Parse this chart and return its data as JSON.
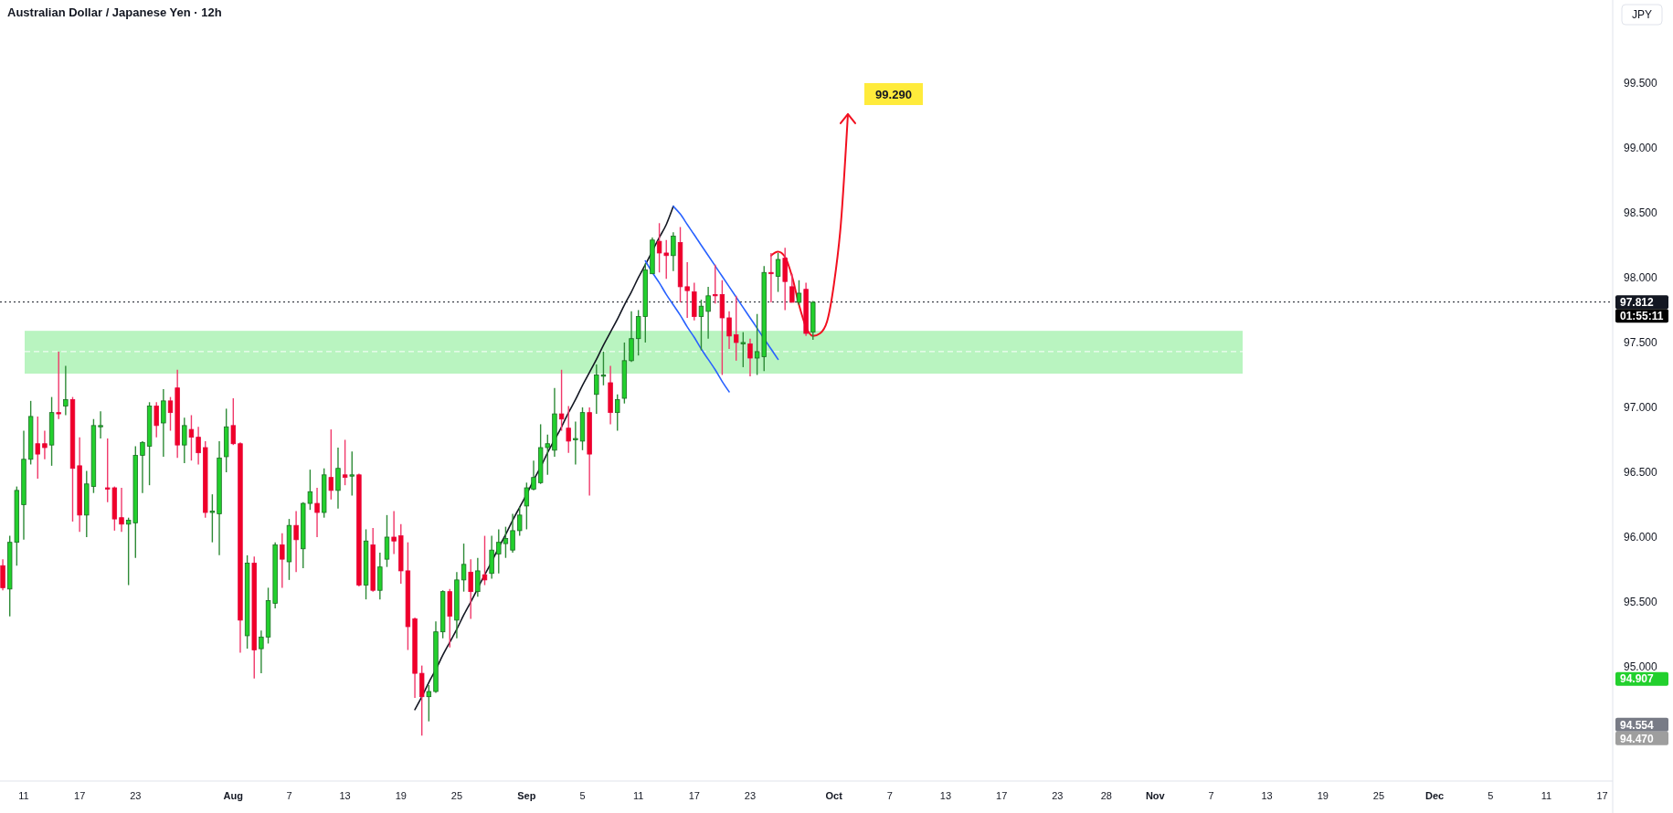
{
  "chart_data": {
    "type": "candlestick",
    "title": "Australian Dollar / Japanese Yen · 12h",
    "categories": [
      null,
      null,
      null,
      "11",
      null,
      null,
      null,
      null,
      null,
      null,
      null,
      "17",
      null,
      null,
      null,
      null,
      null,
      null,
      null,
      "23",
      null,
      null,
      null,
      null,
      null,
      null,
      null,
      null,
      null,
      null,
      null,
      null,
      null,
      "Aug",
      null,
      null,
      null,
      null,
      null,
      null,
      null,
      "7",
      null,
      null,
      null,
      null,
      null,
      null,
      null,
      "13",
      null,
      null,
      null,
      null,
      null,
      null,
      null,
      "19",
      null,
      null,
      null,
      null,
      null,
      null,
      null,
      "25",
      null,
      null,
      null,
      null,
      null,
      null,
      null,
      null,
      null,
      "Sep",
      null,
      null,
      null,
      null,
      null,
      null,
      null,
      "5",
      null,
      null,
      null,
      null,
      null,
      null,
      null,
      "11",
      null,
      null,
      null,
      null,
      null,
      null,
      null,
      "17",
      null,
      null,
      null,
      null,
      null,
      null,
      null,
      "23",
      null,
      null,
      null,
      null,
      null,
      null,
      null,
      null,
      null,
      null,
      null,
      "Oct",
      null,
      null,
      null,
      null,
      null,
      null,
      null,
      "7",
      null,
      null,
      null,
      null,
      null,
      null,
      null,
      "13",
      null,
      null,
      null,
      null,
      null,
      null,
      null,
      "17",
      null,
      null,
      null,
      null,
      null,
      null,
      null,
      "23",
      null,
      null,
      null,
      null,
      null,
      null,
      "28",
      null,
      null,
      null,
      null,
      null,
      null,
      "Nov",
      null,
      null,
      null,
      null,
      null,
      null,
      null,
      "7",
      null,
      null,
      null,
      null,
      null,
      null,
      null,
      "13",
      null,
      null,
      null,
      null,
      null,
      null,
      null,
      "19",
      null,
      null,
      null,
      null,
      null,
      null,
      null,
      "25",
      null,
      null,
      null,
      null,
      null,
      null,
      null,
      "Dec",
      null,
      null,
      null,
      null,
      null,
      null,
      null,
      "5",
      null,
      null,
      null,
      null,
      null,
      null,
      null,
      "11",
      null,
      null,
      null,
      null,
      null,
      null,
      null,
      "17"
    ],
    "ohlc": [
      [
        95.78,
        95.83,
        95.59,
        95.61
      ],
      [
        95.6,
        96.01,
        95.39,
        95.96
      ],
      [
        95.96,
        96.39,
        95.78,
        96.36
      ],
      [
        96.25,
        96.82,
        95.98,
        96.6
      ],
      [
        96.6,
        97.05,
        96.56,
        96.93
      ],
      [
        96.72,
        96.93,
        96.45,
        96.64
      ],
      [
        96.72,
        96.82,
        96.6,
        96.69
      ],
      [
        96.71,
        97.08,
        96.55,
        96.96
      ],
      [
        96.96,
        97.43,
        96.91,
        96.95
      ],
      [
        97.01,
        97.32,
        96.94,
        97.06
      ],
      [
        97.06,
        97.08,
        96.12,
        96.53
      ],
      [
        96.55,
        96.77,
        96.04,
        96.17
      ],
      [
        96.17,
        96.51,
        96.0,
        96.41
      ],
      [
        96.39,
        96.91,
        96.34,
        96.86
      ],
      [
        96.85,
        96.97,
        96.76,
        96.86
      ],
      [
        96.38,
        96.76,
        96.27,
        96.37
      ],
      [
        96.38,
        96.39,
        96.05,
        96.14
      ],
      [
        96.15,
        96.38,
        96.04,
        96.1
      ],
      [
        96.1,
        96.15,
        95.63,
        96.13
      ],
      [
        96.11,
        96.7,
        95.84,
        96.63
      ],
      [
        96.63,
        96.74,
        96.34,
        96.73
      ],
      [
        96.7,
        97.04,
        96.4,
        97.01
      ],
      [
        97.01,
        97.04,
        96.77,
        96.86
      ],
      [
        96.88,
        97.14,
        96.62,
        97.05
      ],
      [
        97.05,
        97.08,
        96.82,
        96.96
      ],
      [
        97.15,
        97.29,
        96.61,
        96.71
      ],
      [
        96.71,
        96.92,
        96.57,
        96.86
      ],
      [
        96.83,
        96.94,
        96.59,
        96.77
      ],
      [
        96.77,
        96.85,
        96.56,
        96.65
      ],
      [
        96.69,
        96.74,
        96.15,
        96.19
      ],
      [
        96.19,
        96.33,
        95.96,
        96.2
      ],
      [
        96.18,
        96.74,
        95.86,
        96.61
      ],
      [
        96.62,
        96.99,
        96.5,
        96.85
      ],
      [
        96.86,
        97.07,
        96.71,
        96.72
      ],
      [
        96.72,
        96.73,
        95.11,
        95.36
      ],
      [
        95.24,
        95.86,
        95.14,
        95.8
      ],
      [
        95.8,
        95.85,
        94.91,
        95.13
      ],
      [
        95.14,
        95.28,
        94.95,
        95.23
      ],
      [
        95.23,
        95.61,
        95.18,
        95.51
      ],
      [
        95.49,
        95.96,
        95.45,
        95.94
      ],
      [
        95.94,
        96.03,
        95.61,
        95.83
      ],
      [
        95.81,
        96.14,
        95.67,
        96.09
      ],
      [
        96.09,
        96.2,
        95.73,
        95.98
      ],
      [
        95.91,
        96.27,
        95.76,
        96.26
      ],
      [
        96.26,
        96.52,
        96.21,
        96.35
      ],
      [
        96.26,
        96.38,
        96.0,
        96.19
      ],
      [
        96.19,
        96.53,
        96.15,
        96.48
      ],
      [
        96.46,
        96.83,
        96.29,
        96.36
      ],
      [
        96.36,
        96.69,
        96.22,
        96.53
      ],
      [
        96.48,
        96.75,
        96.4,
        96.46
      ],
      [
        96.47,
        96.66,
        96.32,
        96.48
      ],
      [
        96.48,
        96.49,
        95.62,
        95.63
      ],
      [
        95.63,
        96.06,
        95.52,
        95.97
      ],
      [
        95.94,
        96.07,
        95.58,
        95.59
      ],
      [
        95.59,
        95.88,
        95.52,
        95.77
      ],
      [
        95.83,
        96.17,
        95.77,
        96.0
      ],
      [
        96.0,
        96.2,
        95.87,
        95.97
      ],
      [
        96.01,
        96.1,
        95.64,
        95.74
      ],
      [
        95.74,
        95.96,
        95.13,
        95.31
      ],
      [
        95.37,
        95.38,
        94.76,
        94.95
      ],
      [
        94.95,
        95.01,
        94.47,
        94.77
      ],
      [
        94.77,
        94.86,
        94.58,
        94.81
      ],
      [
        94.81,
        95.35,
        94.8,
        95.27
      ],
      [
        95.27,
        95.59,
        95.22,
        95.58
      ],
      [
        95.58,
        95.6,
        95.15,
        95.39
      ],
      [
        95.36,
        95.73,
        95.22,
        95.67
      ],
      [
        95.67,
        95.95,
        95.58,
        95.79
      ],
      [
        95.73,
        95.83,
        95.37,
        95.58
      ],
      [
        95.58,
        95.84,
        95.54,
        95.74
      ],
      [
        95.71,
        96.01,
        95.63,
        95.67
      ],
      [
        95.72,
        96.01,
        95.68,
        95.9
      ],
      [
        95.87,
        96.06,
        95.72,
        95.96
      ],
      [
        95.95,
        96.08,
        95.84,
        95.99
      ],
      [
        95.9,
        96.18,
        95.88,
        96.05
      ],
      [
        96.05,
        96.23,
        96.01,
        96.17
      ],
      [
        96.24,
        96.42,
        96.06,
        96.38
      ],
      [
        96.37,
        96.59,
        96.36,
        96.46
      ],
      [
        96.42,
        96.87,
        96.41,
        96.69
      ],
      [
        96.69,
        96.79,
        96.48,
        96.72
      ],
      [
        96.67,
        97.15,
        96.62,
        96.95
      ],
      [
        96.95,
        97.29,
        96.82,
        96.91
      ],
      [
        96.84,
        97.01,
        96.65,
        96.74
      ],
      [
        96.75,
        96.89,
        96.56,
        96.76
      ],
      [
        96.74,
        97.0,
        96.67,
        96.96
      ],
      [
        96.96,
        97.0,
        96.32,
        96.64
      ],
      [
        97.1,
        97.33,
        96.95,
        97.25
      ],
      [
        97.24,
        97.43,
        97.17,
        97.25
      ],
      [
        97.19,
        97.32,
        96.87,
        96.96
      ],
      [
        96.96,
        97.1,
        96.82,
        97.06
      ],
      [
        97.07,
        97.5,
        97.03,
        97.36
      ],
      [
        97.36,
        97.74,
        97.35,
        97.53
      ],
      [
        97.53,
        97.75,
        97.4,
        97.7
      ],
      [
        97.7,
        98.11,
        97.5,
        98.06
      ],
      [
        98.03,
        98.31,
        98.03,
        98.29
      ],
      [
        98.28,
        98.42,
        98.04,
        98.19
      ],
      [
        98.19,
        98.29,
        97.99,
        98.17
      ],
      [
        98.17,
        98.35,
        98.05,
        98.32
      ],
      [
        98.27,
        98.39,
        97.81,
        97.93
      ],
      [
        97.93,
        98.12,
        97.69,
        97.9
      ],
      [
        97.89,
        97.96,
        97.67,
        97.7
      ],
      [
        97.7,
        97.83,
        97.44,
        97.78
      ],
      [
        97.74,
        97.93,
        97.53,
        97.86
      ],
      [
        97.87,
        98.1,
        97.8,
        97.86
      ],
      [
        97.87,
        97.98,
        97.25,
        97.69
      ],
      [
        97.69,
        97.74,
        97.45,
        97.55
      ],
      [
        97.56,
        97.86,
        97.36,
        97.5
      ],
      [
        97.49,
        97.58,
        97.31,
        97.5
      ],
      [
        97.49,
        97.53,
        97.24,
        97.38
      ],
      [
        97.38,
        97.72,
        97.25,
        97.43
      ],
      [
        97.39,
        98.09,
        97.28,
        98.04
      ],
      [
        98.04,
        98.19,
        97.81,
        98.03
      ],
      [
        98.01,
        98.19,
        97.89,
        98.14
      ],
      [
        98.15,
        98.23,
        97.75,
        97.97
      ],
      [
        97.93,
        98.03,
        97.81,
        97.81
      ],
      [
        97.81,
        97.98,
        97.79,
        97.88
      ],
      [
        97.91,
        97.96,
        97.55,
        97.57
      ],
      [
        97.58,
        97.82,
        97.52,
        97.81
      ],
      null,
      null,
      null,
      null,
      null,
      null,
      null,
      null,
      null,
      null,
      null,
      null,
      null,
      null,
      null,
      null,
      null,
      null,
      null,
      null,
      null,
      null,
      null,
      null,
      null,
      null,
      null,
      null,
      null,
      null,
      null,
      null,
      null,
      null,
      null,
      null,
      null,
      null,
      null,
      null,
      null,
      null,
      null,
      null,
      null,
      null,
      null,
      null,
      null,
      null,
      null,
      null,
      null,
      null,
      null,
      null,
      null,
      null,
      null,
      null,
      null,
      null,
      null,
      null,
      null,
      null,
      null,
      null,
      null,
      null,
      null,
      null,
      null,
      null,
      null,
      null,
      null,
      null,
      null,
      null,
      null,
      null,
      null,
      null,
      null,
      null,
      null,
      null,
      null,
      null,
      null,
      null,
      null,
      null,
      null,
      null,
      null,
      null,
      null,
      null,
      null,
      null,
      null,
      null,
      null,
      null,
      null,
      null,
      null,
      null,
      null,
      null,
      null
    ],
    "ylim": [
      94.12,
      100.14
    ],
    "yticks": [
      {
        "value": 95,
        "label": "95.000"
      },
      {
        "value": 95.5,
        "label": "95.500"
      },
      {
        "value": 96,
        "label": "96.000"
      },
      {
        "value": 96.5,
        "label": "96.500"
      },
      {
        "value": 97,
        "label": "97.000"
      },
      {
        "value": 97.5,
        "label": "97.500"
      },
      {
        "value": 98,
        "label": "98.000"
      },
      {
        "value": 98.5,
        "label": "98.500"
      },
      {
        "value": 99,
        "label": "99.000"
      },
      {
        "value": 99.5,
        "label": "99.500"
      }
    ],
    "series": [
      {
        "type": "line",
        "color": "#131722",
        "values": [
          null,
          null,
          null,
          null,
          null,
          null,
          null,
          null,
          null,
          null,
          null,
          null,
          null,
          null,
          null,
          null,
          null,
          null,
          null,
          null,
          null,
          null,
          null,
          null,
          null,
          null,
          null,
          null,
          null,
          null,
          null,
          null,
          null,
          null,
          null,
          null,
          null,
          null,
          null,
          null,
          null,
          null,
          null,
          null,
          null,
          null,
          null,
          null,
          null,
          null,
          null,
          null,
          null,
          null,
          null,
          null,
          null,
          null,
          null,
          94.67,
          94.77,
          94.88,
          94.98,
          95.09,
          95.19,
          95.29,
          95.4,
          95.5,
          null,
          95.71,
          95.81,
          95.92,
          96.02,
          96.13,
          96.23,
          96.33,
          96.44,
          96.54,
          96.65,
          null,
          96.85,
          96.96,
          97.06,
          97.17,
          97.27,
          97.37,
          97.48,
          97.58,
          97.68,
          97.79,
          97.89,
          98.0,
          98.1,
          null,
          98.31,
          98.41,
          98.55,
          null,
          null,
          null,
          null,
          null,
          null,
          null,
          null,
          null,
          null,
          null,
          null,
          null,
          null,
          null,
          null,
          null,
          null,
          null,
          null,
          null,
          null,
          null,
          null,
          null,
          null,
          null,
          null,
          null,
          null,
          null,
          null,
          null,
          null,
          null,
          null,
          null,
          null,
          null,
          null,
          null,
          null,
          null,
          null,
          null,
          null,
          null,
          null,
          null,
          null,
          null,
          null,
          null,
          null,
          null,
          null,
          null,
          null,
          null,
          null,
          null,
          null,
          null,
          null,
          null,
          null,
          null,
          null,
          null,
          null,
          null,
          null,
          null,
          null,
          null,
          null,
          null,
          null,
          null,
          null,
          null,
          null,
          null,
          null,
          null,
          null,
          null,
          null,
          null,
          null,
          null,
          null,
          null,
          null,
          null,
          null,
          null,
          null,
          null,
          null,
          null,
          null,
          null,
          null,
          null,
          null,
          null,
          null,
          null,
          null,
          null,
          null,
          null,
          null,
          null,
          null,
          null,
          null,
          null,
          null,
          null,
          null,
          null,
          null,
          null,
          null,
          null,
          null,
          null,
          null,
          null,
          null,
          null
        ]
      },
      {
        "type": "line",
        "color": "#2962ff",
        "values": [
          null,
          null,
          null,
          null,
          null,
          null,
          null,
          null,
          null,
          null,
          null,
          null,
          null,
          null,
          null,
          null,
          null,
          null,
          null,
          null,
          null,
          null,
          null,
          null,
          null,
          null,
          null,
          null,
          null,
          null,
          null,
          null,
          null,
          null,
          null,
          null,
          null,
          null,
          null,
          null,
          null,
          null,
          null,
          null,
          null,
          null,
          null,
          null,
          null,
          null,
          null,
          null,
          null,
          null,
          null,
          null,
          null,
          null,
          null,
          null,
          null,
          null,
          null,
          null,
          null,
          null,
          null,
          null,
          null,
          null,
          null,
          null,
          null,
          null,
          null,
          null,
          null,
          null,
          null,
          null,
          null,
          null,
          null,
          null,
          null,
          null,
          null,
          null,
          null,
          null,
          null,
          null,
          null,
          null,
          null,
          null,
          98.55,
          98.49,
          98.41,
          98.33,
          98.25,
          98.17,
          98.09,
          98.01,
          97.93,
          97.85,
          97.77,
          97.69,
          97.61,
          97.53,
          97.45,
          97.37,
          null,
          null,
          null,
          null,
          null,
          null,
          null,
          null,
          null,
          null,
          null,
          null,
          null,
          null,
          null,
          null,
          null,
          null,
          null,
          null,
          null,
          null,
          null,
          null,
          null,
          null,
          null,
          null,
          null,
          null,
          null,
          null,
          null,
          null,
          null,
          null,
          null,
          null,
          null,
          null,
          null,
          null,
          null,
          null,
          null,
          null,
          null,
          null,
          null,
          null,
          null,
          null,
          null,
          null,
          null,
          null,
          null,
          null,
          null,
          null,
          null,
          null,
          null,
          null,
          null,
          null,
          null,
          null,
          null,
          null,
          null,
          null,
          null,
          null,
          null,
          null,
          null,
          null,
          null,
          null,
          null,
          null,
          null,
          null,
          null,
          null,
          null,
          null,
          null,
          null,
          null,
          null,
          null,
          null,
          null,
          null,
          null,
          null,
          null,
          null,
          null,
          null,
          null,
          null,
          null,
          null,
          null,
          null,
          null,
          null,
          null,
          null,
          null,
          null,
          null,
          null,
          null,
          null
        ]
      },
      {
        "type": "line",
        "color": "#2962ff",
        "values": [
          null,
          null,
          null,
          null,
          null,
          null,
          null,
          null,
          null,
          null,
          null,
          null,
          null,
          null,
          null,
          null,
          null,
          null,
          null,
          null,
          null,
          null,
          null,
          null,
          null,
          null,
          null,
          null,
          null,
          null,
          null,
          null,
          null,
          null,
          null,
          null,
          null,
          null,
          null,
          null,
          null,
          null,
          null,
          null,
          null,
          null,
          null,
          null,
          null,
          null,
          null,
          null,
          null,
          null,
          null,
          null,
          null,
          null,
          null,
          null,
          null,
          null,
          null,
          null,
          null,
          null,
          null,
          null,
          null,
          null,
          null,
          null,
          null,
          null,
          null,
          null,
          null,
          null,
          null,
          null,
          null,
          null,
          null,
          null,
          null,
          null,
          null,
          null,
          null,
          null,
          null,
          null,
          98.13,
          98.04,
          97.96,
          97.87,
          97.79,
          97.71,
          97.62,
          97.54,
          97.45,
          97.37,
          97.29,
          97.2,
          97.12,
          null,
          null,
          null,
          null,
          null,
          null,
          null,
          null,
          null,
          null,
          null,
          null,
          null,
          null,
          null,
          null,
          null,
          null,
          null,
          null,
          null,
          null,
          null,
          null,
          null,
          null,
          null,
          null,
          null,
          null,
          null,
          null,
          null,
          null,
          null,
          null,
          null,
          null,
          null,
          null,
          null,
          null,
          null,
          null,
          null,
          null,
          null,
          null,
          null,
          null,
          null,
          null,
          null,
          null,
          null,
          null,
          null,
          null,
          null,
          null,
          null,
          null,
          null,
          null,
          null,
          null,
          null,
          null,
          null,
          null,
          null,
          null,
          null,
          null,
          null,
          null,
          null,
          null,
          null,
          null,
          null,
          null,
          null,
          null,
          null,
          null,
          null,
          null,
          null,
          null,
          null,
          null,
          null,
          null,
          null,
          null,
          null,
          null,
          null,
          null,
          null,
          null,
          null,
          null,
          null,
          null,
          null,
          null,
          null,
          null,
          null,
          null,
          null,
          null,
          null,
          null,
          null,
          null,
          null,
          null,
          null,
          null,
          null,
          null,
          null
        ]
      },
      {
        "type": "line",
        "color": "#f20f1f",
        "values": [
          null,
          null,
          null,
          null,
          null,
          null,
          null,
          null,
          null,
          null,
          null,
          null,
          null,
          null,
          null,
          null,
          null,
          null,
          null,
          null,
          null,
          null,
          null,
          null,
          null,
          null,
          null,
          null,
          null,
          null,
          null,
          null,
          null,
          null,
          null,
          null,
          null,
          null,
          null,
          null,
          null,
          null,
          null,
          null,
          null,
          null,
          null,
          null,
          null,
          null,
          null,
          null,
          null,
          null,
          null,
          null,
          null,
          null,
          null,
          null,
          null,
          null,
          null,
          null,
          null,
          null,
          null,
          null,
          null,
          null,
          null,
          null,
          null,
          null,
          null,
          null,
          null,
          null,
          null,
          null,
          null,
          null,
          null,
          null,
          null,
          null,
          null,
          null,
          null,
          null,
          null,
          null,
          null,
          null,
          null,
          null,
          null,
          null,
          null,
          null,
          null,
          null,
          null,
          null,
          null,
          null,
          null,
          null,
          null,
          null,
          98.17,
          98.2,
          98.16,
          98.01,
          97.79,
          97.62,
          97.55,
          97.57,
          97.66,
          97.95,
          98.42,
          99.26,
          null,
          null,
          null,
          null,
          null,
          null,
          null,
          null,
          null,
          null,
          null,
          null,
          null,
          null,
          null,
          null,
          null,
          null,
          null,
          null,
          null,
          null,
          null,
          null,
          null,
          null,
          null,
          null,
          null,
          null,
          null,
          null,
          null,
          null,
          null,
          null,
          null,
          null,
          null,
          null,
          null,
          null,
          null,
          null,
          null,
          null,
          null,
          null,
          null,
          null,
          null,
          null,
          null,
          null,
          null,
          null,
          null,
          null,
          null,
          null,
          null,
          null,
          null,
          null,
          null,
          null,
          null,
          null,
          null,
          null,
          null,
          null,
          null,
          null,
          null,
          null,
          null,
          null,
          null,
          null,
          null,
          null,
          null,
          null,
          null,
          null,
          null,
          null,
          null,
          null,
          null,
          null,
          null,
          null,
          null,
          null,
          null,
          null,
          null,
          null,
          null,
          null,
          null,
          null,
          null,
          null,
          null,
          null
        ]
      }
    ],
    "bands": [
      {
        "axis": "y",
        "from": 97.26,
        "to": 97.59,
        "color": "#b9f4c0"
      }
    ],
    "ref_lines": [
      {
        "axis": "y",
        "value": 97.43,
        "color": "#ffffff",
        "line_style": "dashed"
      },
      {
        "axis": "y",
        "value": 97.812,
        "label": "97.812",
        "color": "#131722",
        "line_style": "dotted"
      }
    ],
    "annotations": [
      "JPY",
      "01:55:11",
      "94.907",
      "94.554",
      "94.470",
      "99.290"
    ]
  }
}
